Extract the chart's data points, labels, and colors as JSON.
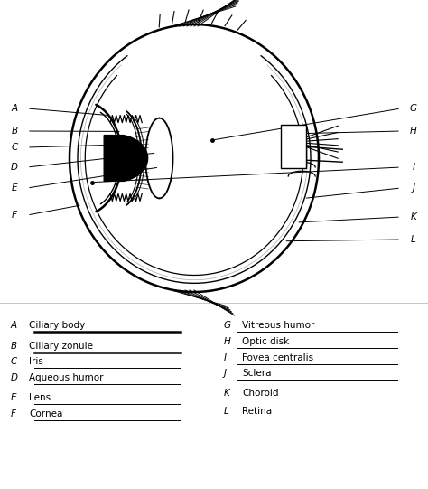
{
  "background_color": "#ffffff",
  "line_color": "#000000",
  "text_color": "#000000",
  "left_labels": [
    {
      "letter": "A",
      "name": "Ciliary body",
      "underline_thick": true
    },
    {
      "letter": "B",
      "name": "Ciliary zonule",
      "underline_thick": true
    },
    {
      "letter": "C",
      "name": "Iris",
      "underline_thick": false
    },
    {
      "letter": "D",
      "name": "Aqueous humor",
      "underline_thick": false
    },
    {
      "letter": "E",
      "name": "Lens",
      "underline_thick": false
    },
    {
      "letter": "F",
      "name": "Cornea",
      "underline_thick": false
    }
  ],
  "right_labels": [
    {
      "letter": "G",
      "name": "Vitreous humor",
      "underline_thick": false
    },
    {
      "letter": "H",
      "name": "Optic disk",
      "underline_thick": false
    },
    {
      "letter": "I",
      "name": "Fovea centralis",
      "underline_thick": false
    },
    {
      "letter": "J",
      "name": "Sclera",
      "underline_thick": false
    },
    {
      "letter": "K",
      "name": "Choroid",
      "underline_thick": false
    },
    {
      "letter": "L",
      "name": "Retina",
      "underline_thick": false
    }
  ]
}
